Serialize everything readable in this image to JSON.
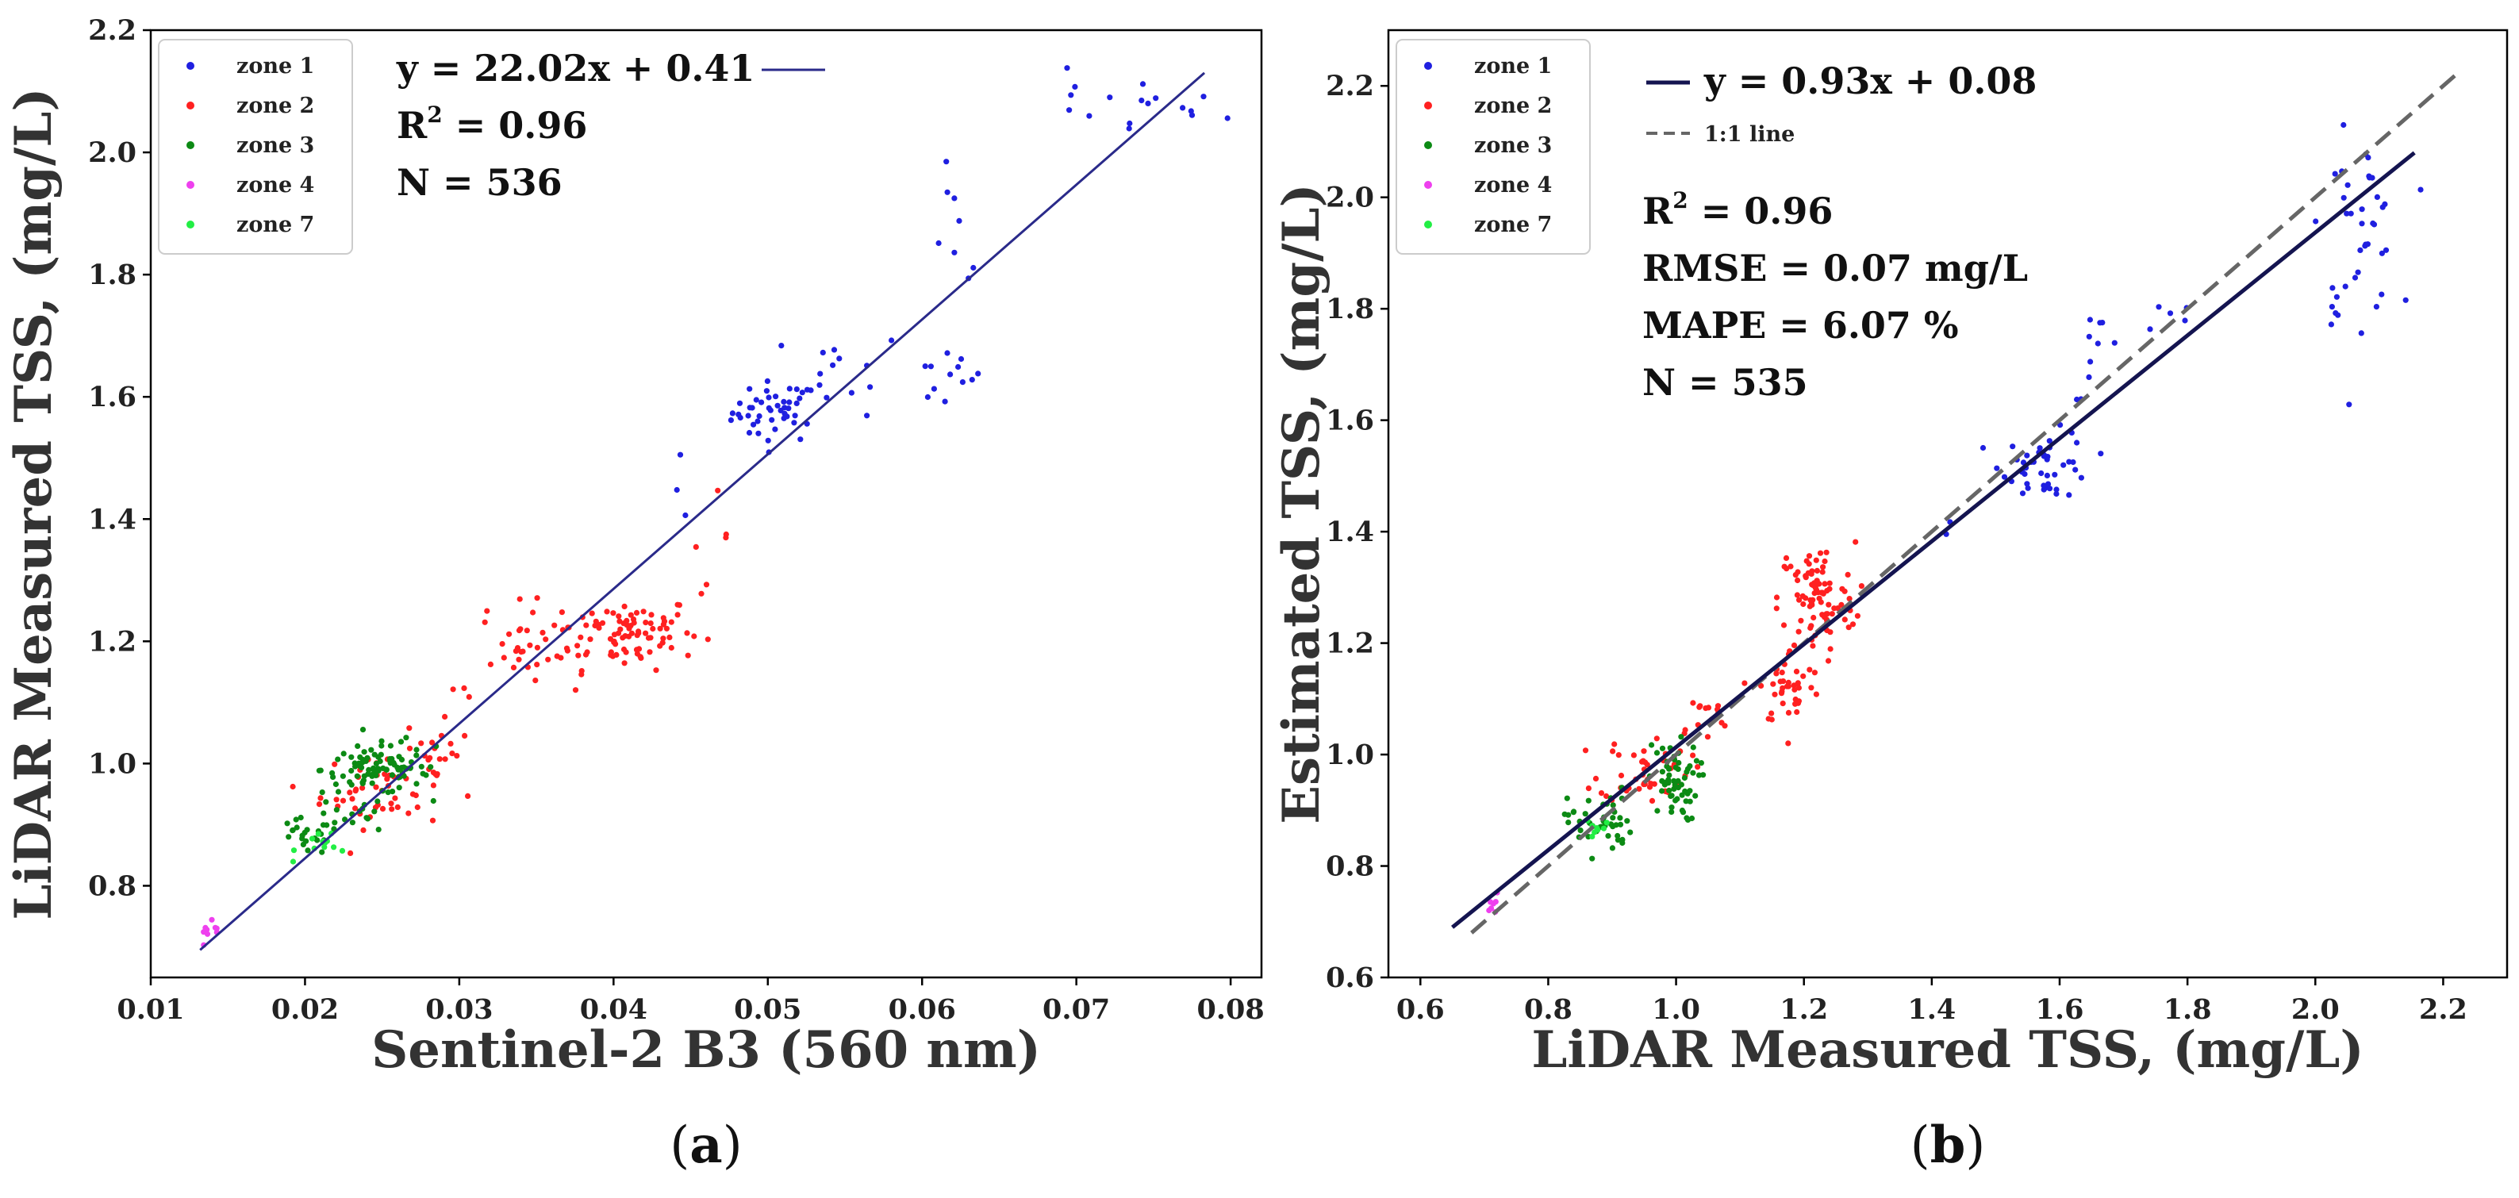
{
  "chart_data": [
    {
      "type": "scatter",
      "panel_label": "a",
      "xlabel": "Sentinel-2 B3 (560 nm)",
      "ylabel": "LiDAR Measured TSS, (mg/L)",
      "xlim": [
        0.01,
        0.082
      ],
      "ylim": [
        0.65,
        2.2
      ],
      "xticks": [
        "0.01",
        "0.02",
        "0.03",
        "0.04",
        "0.05",
        "0.06",
        "0.07",
        "0.08"
      ],
      "yticks": [
        "0.8",
        "1.0",
        "1.2",
        "1.4",
        "1.6",
        "1.8",
        "2.0",
        "2.2"
      ],
      "legend_position": "top-left",
      "legend": [
        "zone 1",
        "zone 2",
        "zone 3",
        "zone 4",
        "zone 7"
      ],
      "annotations": {
        "equation": "y = 22.02x + 0.41",
        "r2_label": "R",
        "r2_sup": "2",
        "r2_value": " = 0.96",
        "n": "N = 536"
      },
      "fit_line": {
        "x": [
          0.0132,
          0.0783
        ],
        "y": [
          0.695,
          2.13
        ]
      },
      "series": [
        {
          "name": "zone 1",
          "color": "#1f1fe0",
          "clusters": [
            {
              "x": 0.0505,
              "y": 1.575,
              "sx": 0.0014,
              "sy": 0.025,
              "n": 45
            },
            {
              "x": 0.055,
              "y": 1.64,
              "sx": 0.002,
              "sy": 0.035,
              "n": 14
            },
            {
              "x": 0.0615,
              "y": 1.63,
              "sx": 0.0012,
              "sy": 0.025,
              "n": 12
            },
            {
              "x": 0.0622,
              "y": 1.86,
              "sx": 0.001,
              "sy": 0.05,
              "n": 8
            },
            {
              "x": 0.0745,
              "y": 2.07,
              "sx": 0.0025,
              "sy": 0.025,
              "n": 12
            },
            {
              "x": 0.07,
              "y": 2.08,
              "sx": 0.0008,
              "sy": 0.03,
              "n": 5
            },
            {
              "x": 0.0448,
              "y": 1.44,
              "sx": 0.0004,
              "sy": 0.03,
              "n": 3
            }
          ]
        },
        {
          "name": "zone 2",
          "color": "#ff2020",
          "clusters": [
            {
              "x": 0.0405,
              "y": 1.215,
              "sx": 0.0025,
              "sy": 0.03,
              "n": 95
            },
            {
              "x": 0.034,
              "y": 1.19,
              "sx": 0.0013,
              "sy": 0.035,
              "n": 25
            },
            {
              "x": 0.025,
              "y": 0.955,
              "sx": 0.002,
              "sy": 0.03,
              "n": 50
            },
            {
              "x": 0.0285,
              "y": 1.02,
              "sx": 0.001,
              "sy": 0.03,
              "n": 14
            },
            {
              "x": 0.046,
              "y": 1.37,
              "sx": 0.0008,
              "sy": 0.035,
              "n": 6
            },
            {
              "x": 0.0305,
              "y": 1.08,
              "sx": 0.001,
              "sy": 0.03,
              "n": 6
            }
          ]
        },
        {
          "name": "zone 3",
          "color": "#0c8a14",
          "clusters": [
            {
              "x": 0.0245,
              "y": 0.99,
              "sx": 0.0017,
              "sy": 0.02,
              "n": 80
            },
            {
              "x": 0.02,
              "y": 0.88,
              "sx": 0.0012,
              "sy": 0.015,
              "n": 25
            },
            {
              "x": 0.023,
              "y": 0.915,
              "sx": 0.0012,
              "sy": 0.015,
              "n": 15
            },
            {
              "x": 0.027,
              "y": 1.0,
              "sx": 0.001,
              "sy": 0.02,
              "n": 15
            }
          ]
        },
        {
          "name": "zone 4",
          "color": "#ee40ee",
          "clusters": [
            {
              "x": 0.0138,
              "y": 0.715,
              "sx": 0.0005,
              "sy": 0.012,
              "n": 9
            }
          ]
        },
        {
          "name": "zone 7",
          "color": "#22ee44",
          "clusters": [
            {
              "x": 0.0215,
              "y": 0.87,
              "sx": 0.001,
              "sy": 0.012,
              "n": 12
            }
          ]
        }
      ]
    },
    {
      "type": "scatter",
      "panel_label": "b",
      "xlabel": "LiDAR Measured TSS, (mg/L)",
      "ylabel": "Estimated TSS, (mg/L)",
      "xlim": [
        0.55,
        2.3
      ],
      "ylim": [
        0.6,
        2.3
      ],
      "xticks": [
        "0.6",
        "0.8",
        "1.0",
        "1.2",
        "1.4",
        "1.6",
        "1.8",
        "2.0",
        "2.2"
      ],
      "yticks": [
        "0.6",
        "0.8",
        "1.0",
        "1.2",
        "1.4",
        "1.6",
        "1.8",
        "2.0",
        "2.2"
      ],
      "legend_position": "top-left",
      "legend": [
        "zone 1",
        "zone 2",
        "zone 3",
        "zone 4",
        "zone 7"
      ],
      "annotations": {
        "equation": "y = 0.93x + 0.08",
        "one_to_one": "1:1 line",
        "r2_label": "R",
        "r2_sup": "2",
        "r2_value": " = 0.96",
        "rmse": "RMSE = 0.07 mg/L",
        "mape": "MAPE = 6.07 %",
        "n": "N = 535"
      },
      "fit_line": {
        "x": [
          0.65,
          2.155
        ],
        "y": [
          0.69,
          2.08
        ]
      },
      "one_to_one_line": {
        "x": [
          0.68,
          2.22
        ],
        "y": [
          0.68,
          2.22
        ]
      },
      "series": [
        {
          "name": "zone 1",
          "color": "#1f1fe0",
          "clusters": [
            {
              "x": 1.58,
              "y": 1.52,
              "sx": 0.035,
              "sy": 0.03,
              "n": 45
            },
            {
              "x": 1.66,
              "y": 1.72,
              "sx": 0.02,
              "sy": 0.04,
              "n": 10
            },
            {
              "x": 1.77,
              "y": 1.79,
              "sx": 0.02,
              "sy": 0.02,
              "n": 5
            },
            {
              "x": 2.07,
              "y": 1.95,
              "sx": 0.03,
              "sy": 0.08,
              "n": 35
            },
            {
              "x": 2.03,
              "y": 1.8,
              "sx": 0.006,
              "sy": 0.025,
              "n": 6
            },
            {
              "x": 1.43,
              "y": 1.4,
              "sx": 0.01,
              "sy": 0.01,
              "n": 2
            }
          ]
        },
        {
          "name": "zone 2",
          "color": "#ff2020",
          "clusters": [
            {
              "x": 1.22,
              "y": 1.28,
              "sx": 0.03,
              "sy": 0.05,
              "n": 90
            },
            {
              "x": 1.18,
              "y": 1.12,
              "sx": 0.025,
              "sy": 0.035,
              "n": 40
            },
            {
              "x": 0.95,
              "y": 0.975,
              "sx": 0.035,
              "sy": 0.03,
              "n": 45
            },
            {
              "x": 1.04,
              "y": 1.06,
              "sx": 0.025,
              "sy": 0.025,
              "n": 15
            }
          ]
        },
        {
          "name": "zone 3",
          "color": "#0c8a14",
          "clusters": [
            {
              "x": 0.995,
              "y": 0.95,
              "sx": 0.02,
              "sy": 0.035,
              "n": 60
            },
            {
              "x": 0.88,
              "y": 0.88,
              "sx": 0.025,
              "sy": 0.03,
              "n": 45
            }
          ]
        },
        {
          "name": "zone 4",
          "color": "#ee40ee",
          "clusters": [
            {
              "x": 0.715,
              "y": 0.72,
              "sx": 0.006,
              "sy": 0.015,
              "n": 7
            }
          ]
        },
        {
          "name": "zone 7",
          "color": "#22ee44",
          "clusters": [
            {
              "x": 0.875,
              "y": 0.87,
              "sx": 0.012,
              "sy": 0.012,
              "n": 8
            }
          ]
        }
      ]
    }
  ]
}
